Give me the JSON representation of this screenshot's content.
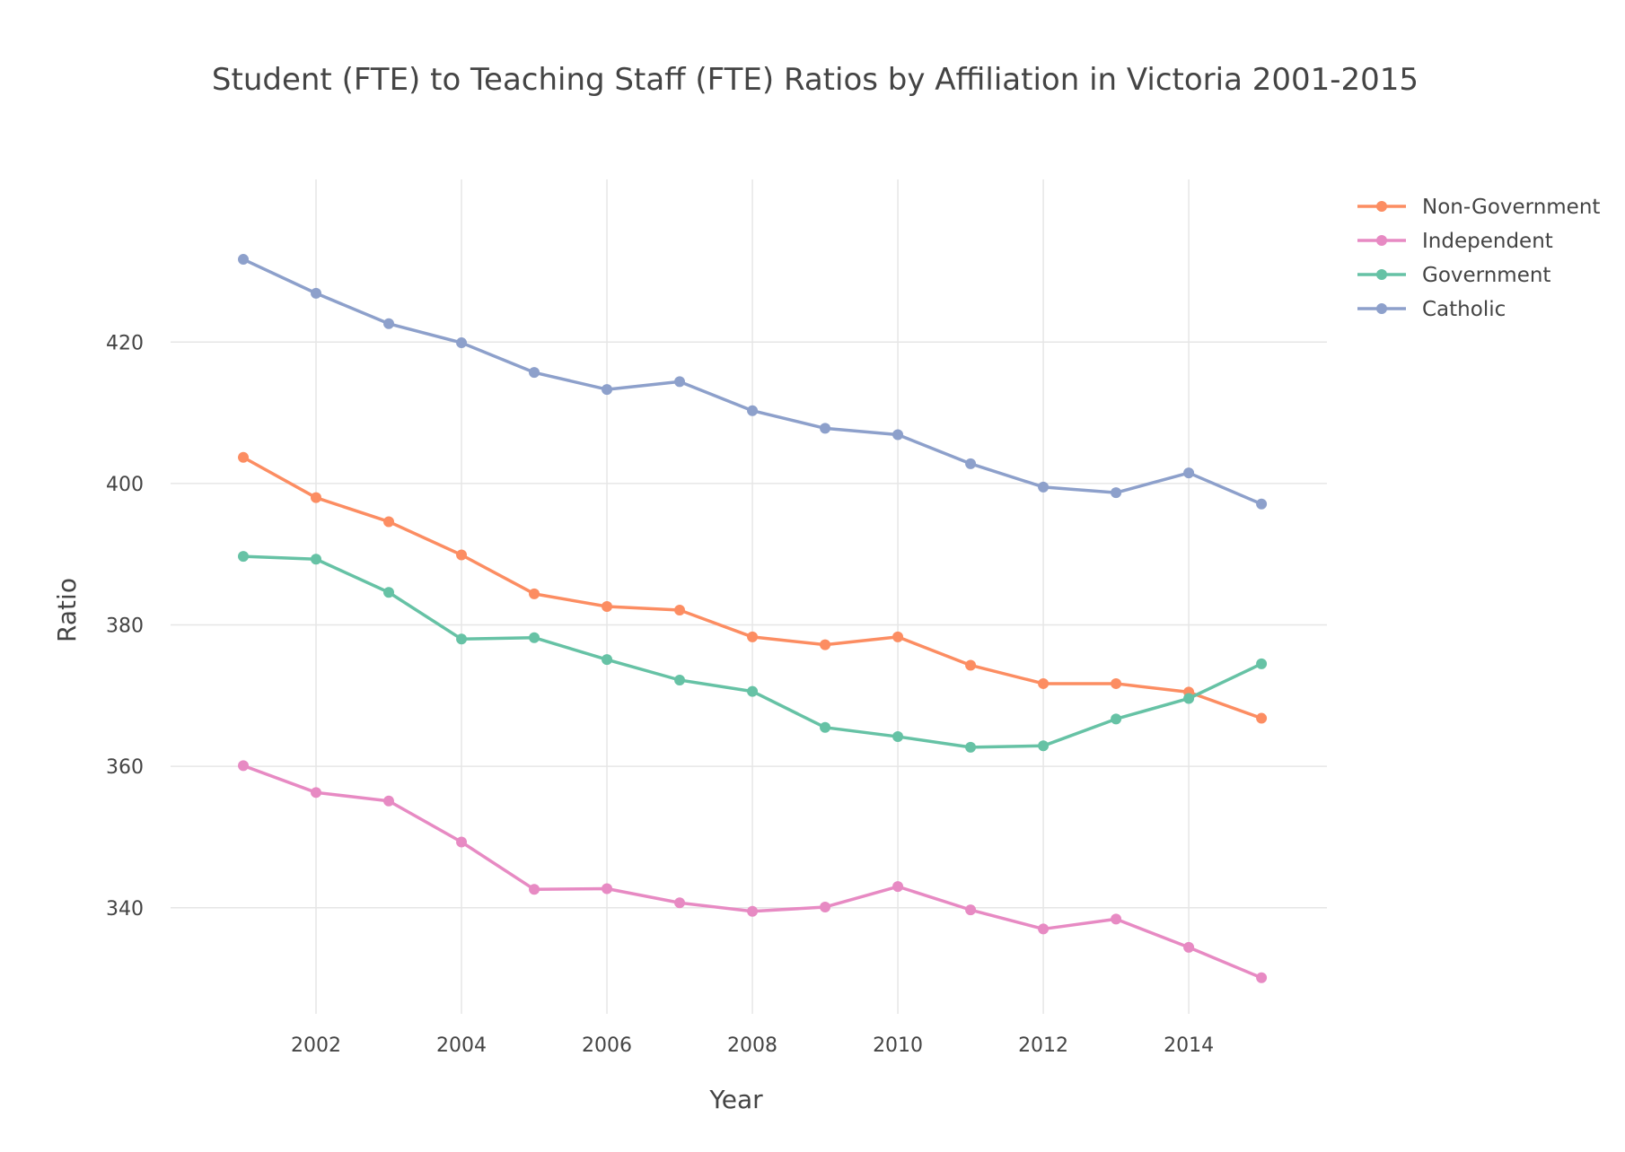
{
  "chart_data": {
    "type": "line",
    "title": "Student (FTE) to Teaching Staff (FTE) Ratios by Affiliation in Victoria 2001-2015",
    "xlabel": "Year",
    "ylabel": "Ratio",
    "x": [
      2001,
      2002,
      2003,
      2004,
      2005,
      2006,
      2007,
      2008,
      2009,
      2010,
      2011,
      2012,
      2013,
      2014,
      2015
    ],
    "xlim": [
      2000.0,
      2015.9
    ],
    "ylim": [
      325,
      443
    ],
    "x_ticks": [
      2002,
      2004,
      2006,
      2008,
      2010,
      2012,
      2014
    ],
    "y_ticks": [
      340,
      360,
      380,
      400,
      420
    ],
    "grid": true,
    "legend_position": "top-right",
    "series": [
      {
        "name": "Non-Government",
        "color": "#fc8d62",
        "values": [
          403.7,
          398.0,
          394.6,
          389.9,
          384.4,
          382.6,
          382.1,
          378.3,
          377.2,
          378.3,
          374.3,
          371.7,
          371.7,
          370.5,
          366.8
        ]
      },
      {
        "name": "Independent",
        "color": "#e78ac3",
        "values": [
          360.1,
          356.3,
          355.1,
          349.3,
          342.6,
          342.7,
          340.7,
          339.5,
          340.1,
          343.0,
          339.7,
          337.0,
          338.4,
          334.4,
          330.1
        ]
      },
      {
        "name": "Government",
        "color": "#66c2a5",
        "values": [
          389.7,
          389.3,
          384.6,
          378.0,
          378.2,
          375.1,
          372.2,
          370.6,
          365.5,
          364.2,
          362.7,
          362.9,
          366.7,
          369.6,
          374.5
        ]
      },
      {
        "name": "Catholic",
        "color": "#8da0cb",
        "values": [
          431.7,
          426.9,
          422.6,
          419.9,
          415.7,
          413.3,
          414.4,
          410.3,
          407.8,
          406.9,
          402.8,
          399.5,
          398.7,
          401.5,
          397.1
        ]
      }
    ]
  }
}
